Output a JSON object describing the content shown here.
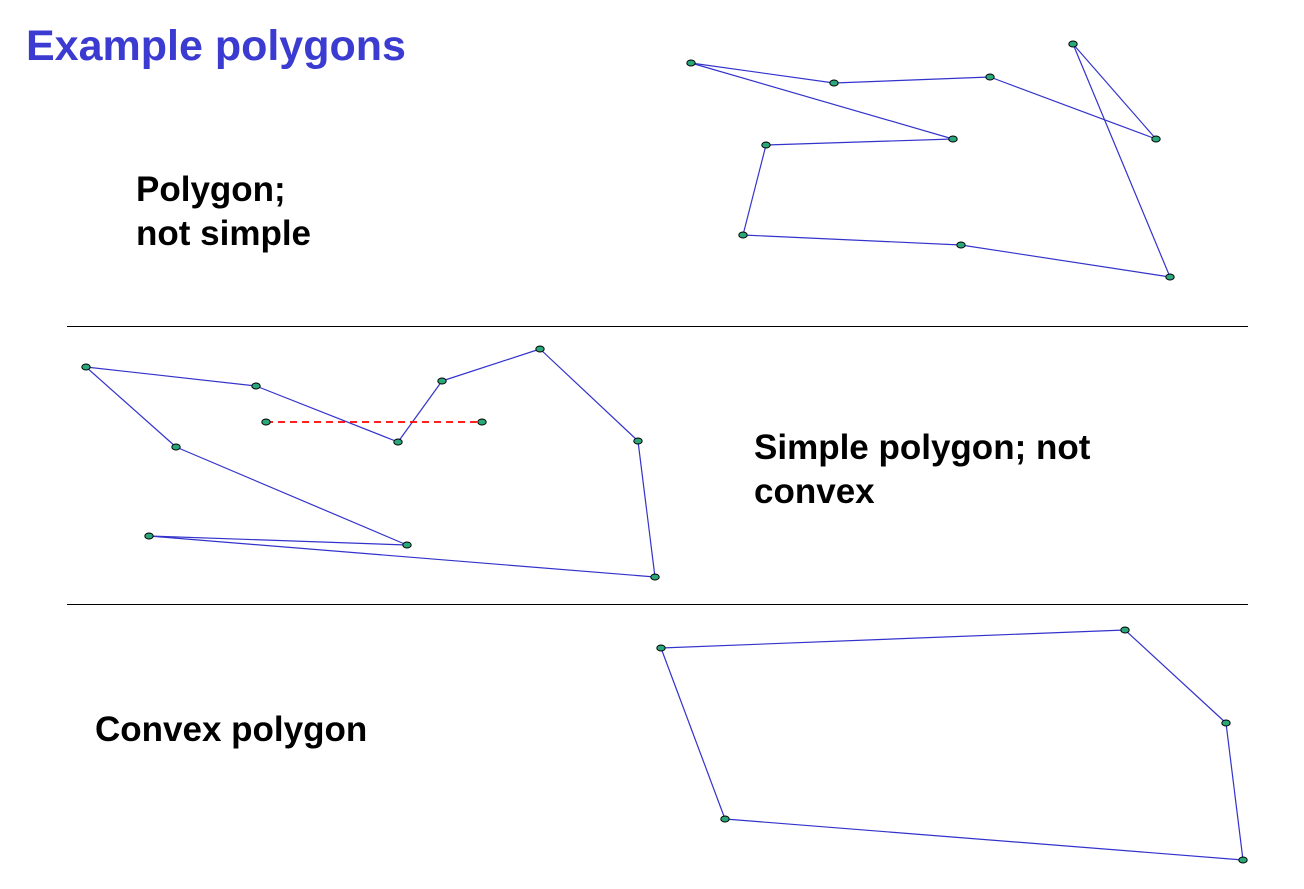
{
  "title": "Example polygons",
  "colors": {
    "title": "#3b3bd1",
    "edge": "#3333cc",
    "vertex_fill": "#2aa87a",
    "vertex_stroke": "#000000",
    "dashed_segment": "#ff0000"
  },
  "examples": [
    {
      "label_lines": [
        "Polygon;",
        "not simple"
      ],
      "closed": true
    },
    {
      "label_lines": [
        "Simple polygon; not",
        "convex"
      ],
      "closed": true,
      "dashed_segment": true
    },
    {
      "label_lines": [
        "Convex polygon"
      ],
      "closed": true
    }
  ]
}
